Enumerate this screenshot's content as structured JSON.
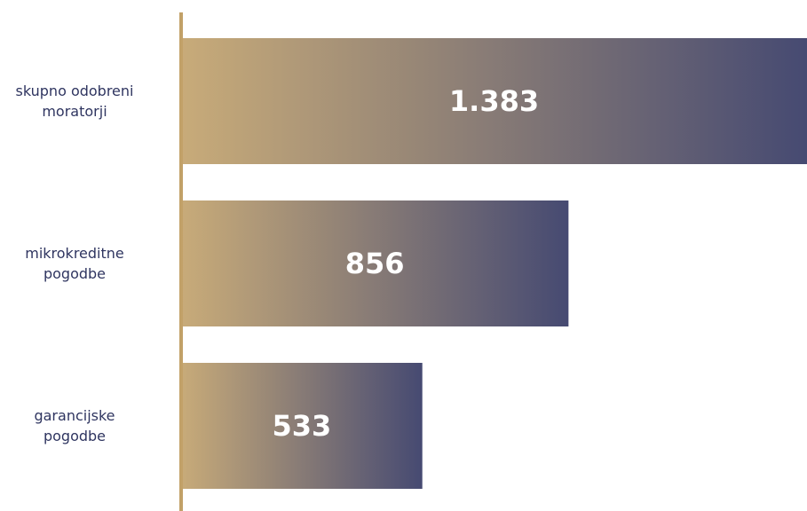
{
  "chart_data": {
    "type": "bar",
    "orientation": "horizontal",
    "categories": [
      [
        "skupno odobreni",
        "moratorji"
      ],
      [
        "mikrokreditne",
        "pogodbe"
      ],
      [
        "garancijske",
        "pogodbe"
      ]
    ],
    "values": [
      1383,
      856,
      533
    ],
    "value_labels": [
      "1.383",
      "856",
      "533"
    ],
    "xlim": [
      0,
      1383
    ],
    "grid": false,
    "legend": "none",
    "colors": {
      "gradient_start": "#c8ab79",
      "gradient_end": "#464a72",
      "axis": "#c2a168",
      "category_text": "#2f3560",
      "value_text": "#ffffff"
    }
  }
}
